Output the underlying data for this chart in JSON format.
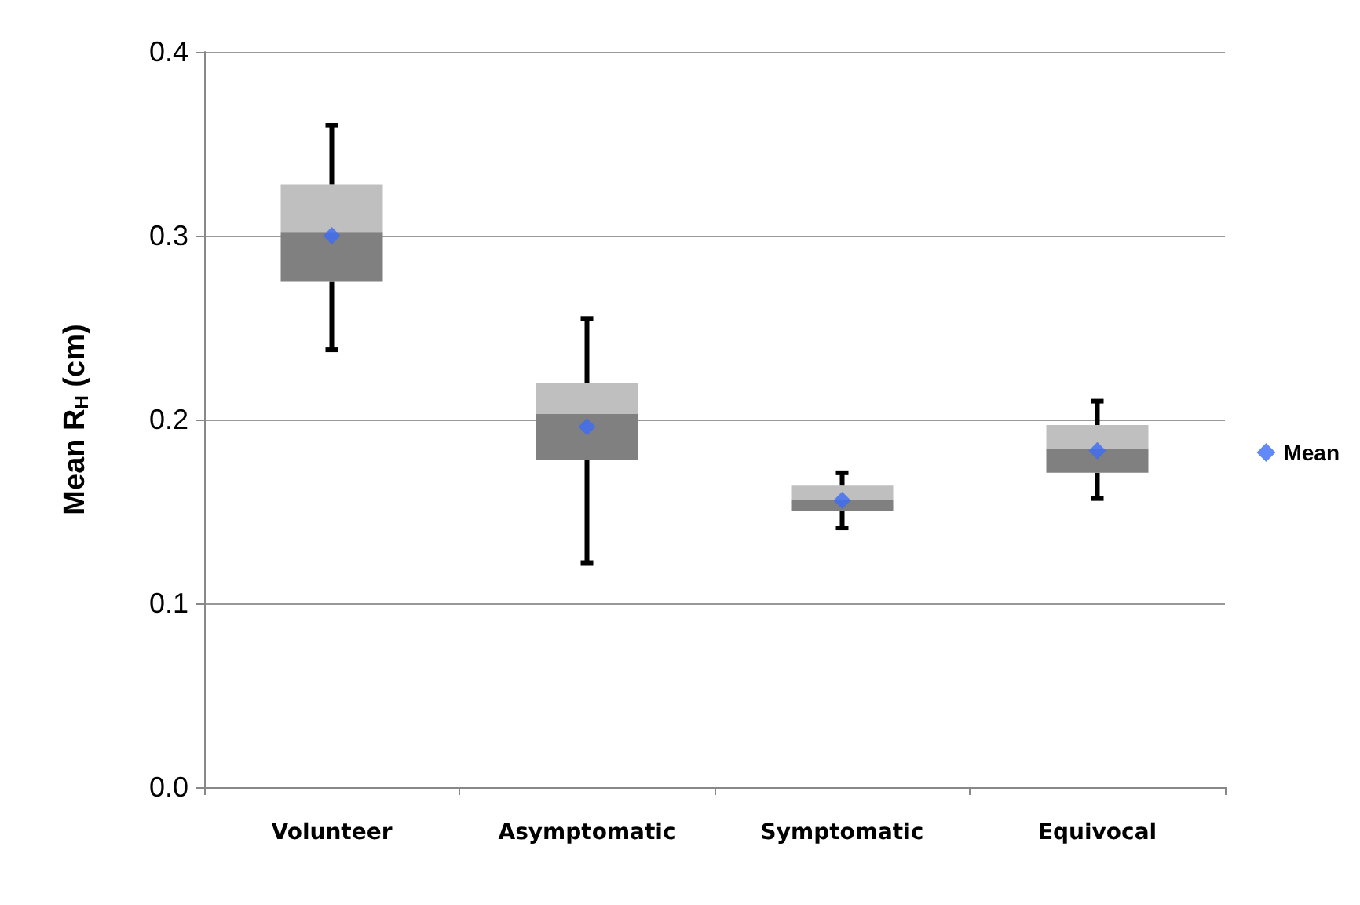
{
  "chart_data": {
    "type": "box",
    "ylabel": "Mean R$_{H}$ (cm)",
    "categories": [
      "Volunteer",
      "Asymptomatic",
      "Symptomatic",
      "Equivocal"
    ],
    "ylim": [
      0,
      0.4
    ],
    "yticks": [
      {
        "value": 0,
        "label": "0.0"
      },
      {
        "value": 0.1,
        "label": "0.1"
      },
      {
        "value": 0.2,
        "label": "0.2"
      },
      {
        "value": 0.3,
        "label": "0.3"
      },
      {
        "value": 0.4,
        "label": "0.4"
      }
    ],
    "grid": "y",
    "legend": "right",
    "series": [
      {
        "color": "#808080",
        "boxes": [
          {
            "low": 0.238,
            "q1": 0.275,
            "median": 0.302,
            "q3": 0.328,
            "high": 0.36
          },
          {
            "low": 0.122,
            "q1": 0.178,
            "median": 0.203,
            "q3": 0.22,
            "high": 0.255
          },
          {
            "low": 0.141,
            "q1": 0.15,
            "median": 0.156,
            "q3": 0.164,
            "high": 0.171
          },
          {
            "low": 0.157,
            "q1": 0.171,
            "median": 0.184,
            "q3": 0.197,
            "high": 0.21
          }
        ]
      },
      {
        "type": "scatter",
        "name": "Mean",
        "color": "#3b6cf5",
        "marker": "diamond",
        "x": [
          "Volunteer",
          "Asymptomatic",
          "Symptomatic",
          "Equivocal"
        ],
        "values": [
          0.3,
          0.196,
          0.156,
          0.183
        ]
      }
    ]
  }
}
